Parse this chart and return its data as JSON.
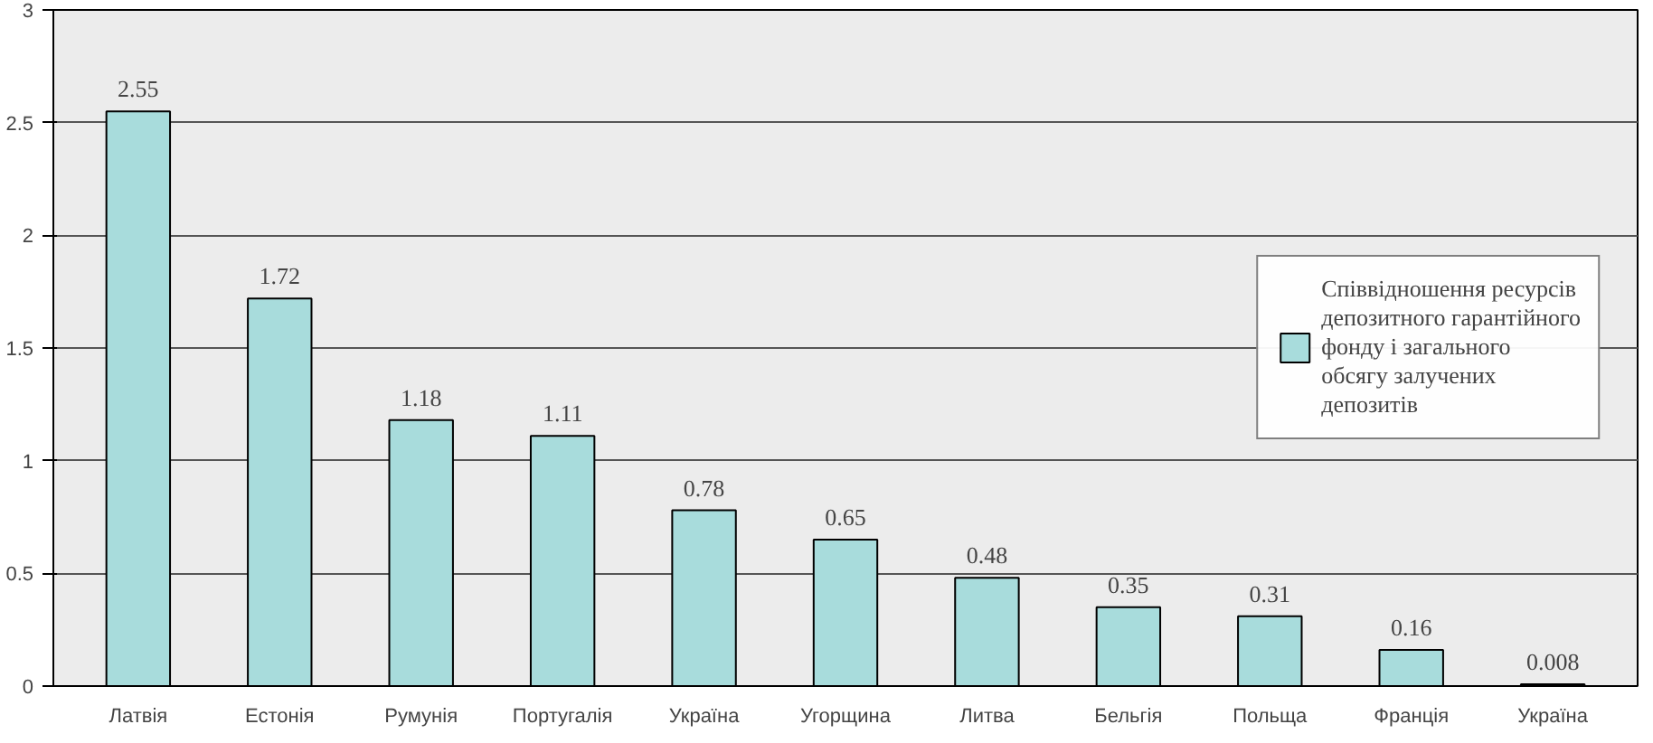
{
  "chart_data": {
    "type": "bar",
    "categories": [
      "Латвія",
      "Естонія",
      "Румунія",
      "Португалія",
      "Україна",
      "Угорщина",
      "Литва",
      "Бельгія",
      "Польща",
      "Франція",
      "Україна"
    ],
    "series": [
      {
        "name": "Співвідношення ресурсів депозитного гарантійного фонду і загального обсягу залучених депозитів",
        "color": "#a8dcdc",
        "values": [
          2.55,
          1.72,
          1.18,
          1.11,
          0.78,
          0.65,
          0.48,
          0.35,
          0.31,
          0.16,
          0.008
        ]
      }
    ],
    "ylim": [
      0,
      3
    ],
    "yticks": [
      0,
      0.5,
      1,
      1.5,
      2,
      2.5,
      3
    ],
    "grid": "y",
    "legend": "right",
    "data_labels": true
  }
}
